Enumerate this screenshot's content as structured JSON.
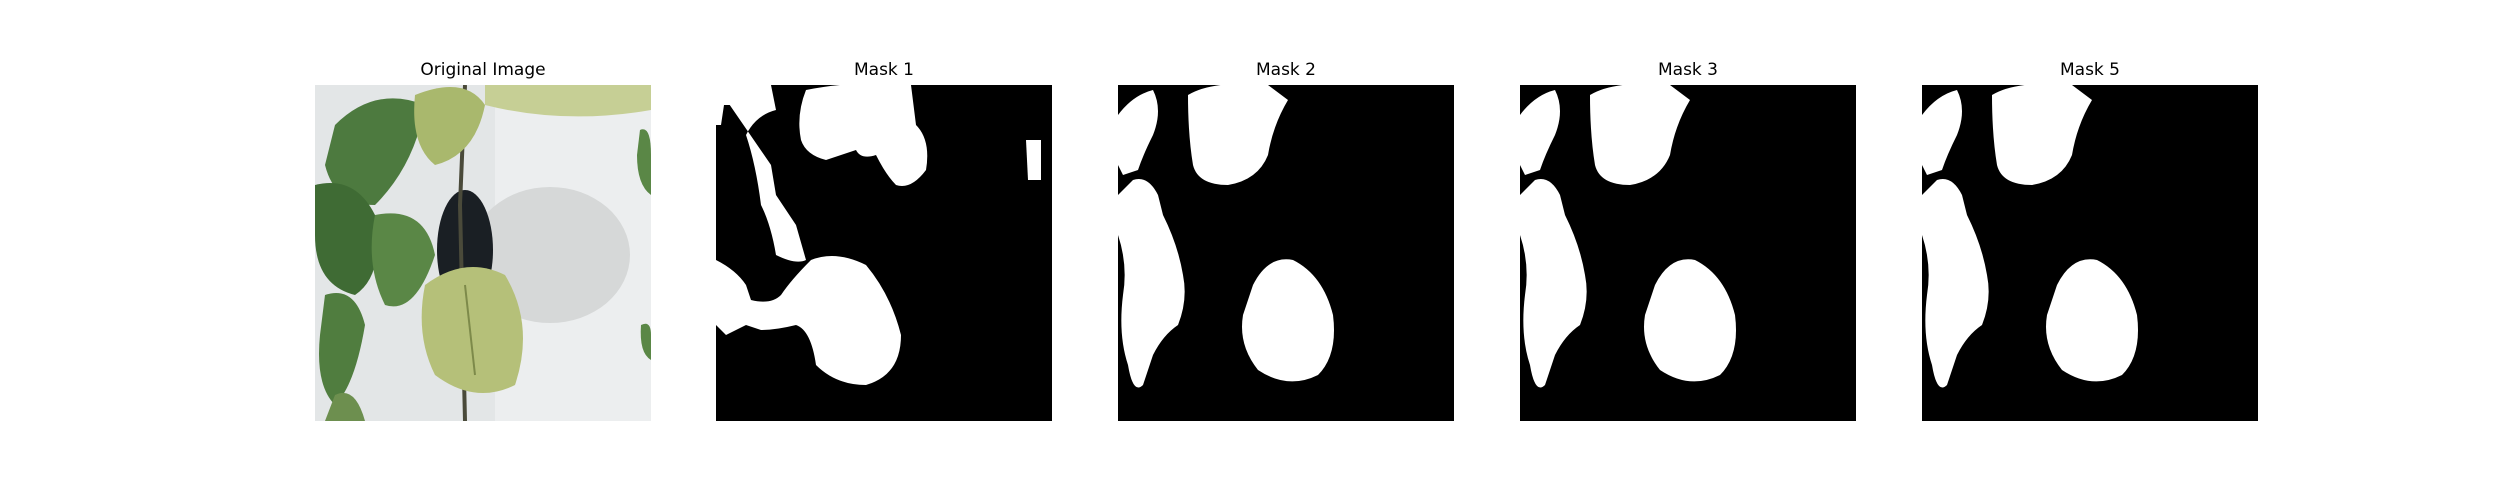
{
  "panels": [
    {
      "title": "Original Image",
      "kind": "photo"
    },
    {
      "title": "Mask 1",
      "kind": "mask"
    },
    {
      "title": "Mask 2",
      "kind": "mask"
    },
    {
      "title": "Mask 3",
      "kind": "mask"
    },
    {
      "title": "Mask 5",
      "kind": "mask"
    }
  ],
  "colors": {
    "background": "#ffffff",
    "mask_background": "#000000",
    "mask_foreground": "#ffffff",
    "photo_wall": "#e6e8e9",
    "leaf_dark": "#3f6b34",
    "leaf_light": "#b7c27a",
    "pot": "#1a1f24"
  }
}
